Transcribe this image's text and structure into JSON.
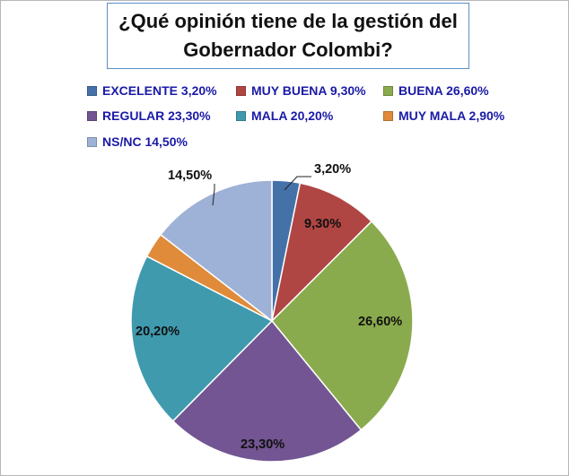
{
  "chart_data": {
    "type": "pie",
    "title": "¿Qué opinión tiene de la gestión del Gobernador Colombi?",
    "slices": [
      {
        "name": "EXCELENTE",
        "value": 3.2,
        "label": "3,20%",
        "legend": "EXCELENTE 3,20%",
        "color": "#4472a8"
      },
      {
        "name": "MUY BUENA",
        "value": 9.3,
        "label": "9,30%",
        "legend": "MUY BUENA 9,30%",
        "color": "#b04643"
      },
      {
        "name": "BUENA",
        "value": 26.6,
        "label": "26,60%",
        "legend": "BUENA 26,60%",
        "color": "#8aab4d"
      },
      {
        "name": "REGULAR",
        "value": 23.3,
        "label": "23,30%",
        "legend": "REGULAR 23,30%",
        "color": "#725592"
      },
      {
        "name": "MALA",
        "value": 20.2,
        "label": "20,20%",
        "legend": "MALA 20,20%",
        "color": "#3f9aae"
      },
      {
        "name": "MUY MALA",
        "value": 2.9,
        "label": "2,90%",
        "legend": "MUY MALA 2,90%",
        "color": "#e08b3a"
      },
      {
        "name": "NS/NC",
        "value": 14.5,
        "label": "14,50%",
        "legend": "NS/NC 14,50%",
        "color": "#9eb1d6"
      }
    ],
    "legend_position": "top"
  }
}
